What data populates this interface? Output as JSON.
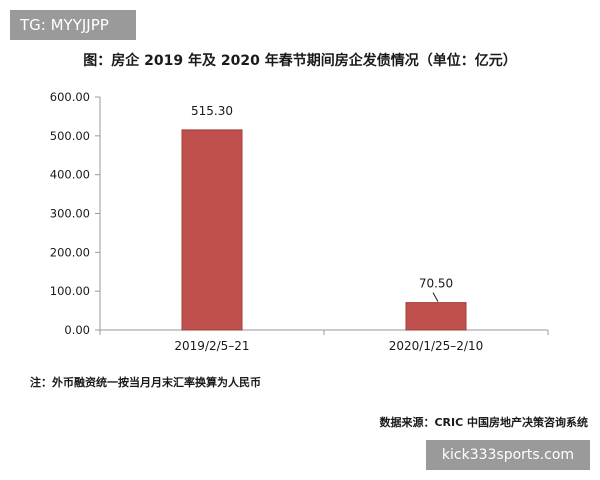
{
  "watermarks": {
    "top_left": "TG: MYYJJPP",
    "bottom_right": "kick333sports.com"
  },
  "chart_data": {
    "type": "bar",
    "title": "图：房企 2019 年及 2020 年春节期间房企发债情况（单位：亿元）",
    "categories": [
      "2019/2/5–21",
      "2020/1/25–2/10"
    ],
    "values": [
      515.3,
      70.5
    ],
    "value_labels": [
      "515.30",
      "70.50"
    ],
    "ylim": [
      0,
      600
    ],
    "yticks": [
      0,
      100,
      200,
      300,
      400,
      500,
      600
    ],
    "ytick_labels": [
      "0.00",
      "100.00",
      "200.00",
      "300.00",
      "400.00",
      "500.00",
      "600.00"
    ],
    "xlabel": "",
    "ylabel": "",
    "grid": false,
    "bar_color": "#c0504d"
  },
  "note": "注：外币融资统一按当月月末汇率换算为人民币",
  "source": "数据来源：CRIC 中国房地产决策咨询系统"
}
